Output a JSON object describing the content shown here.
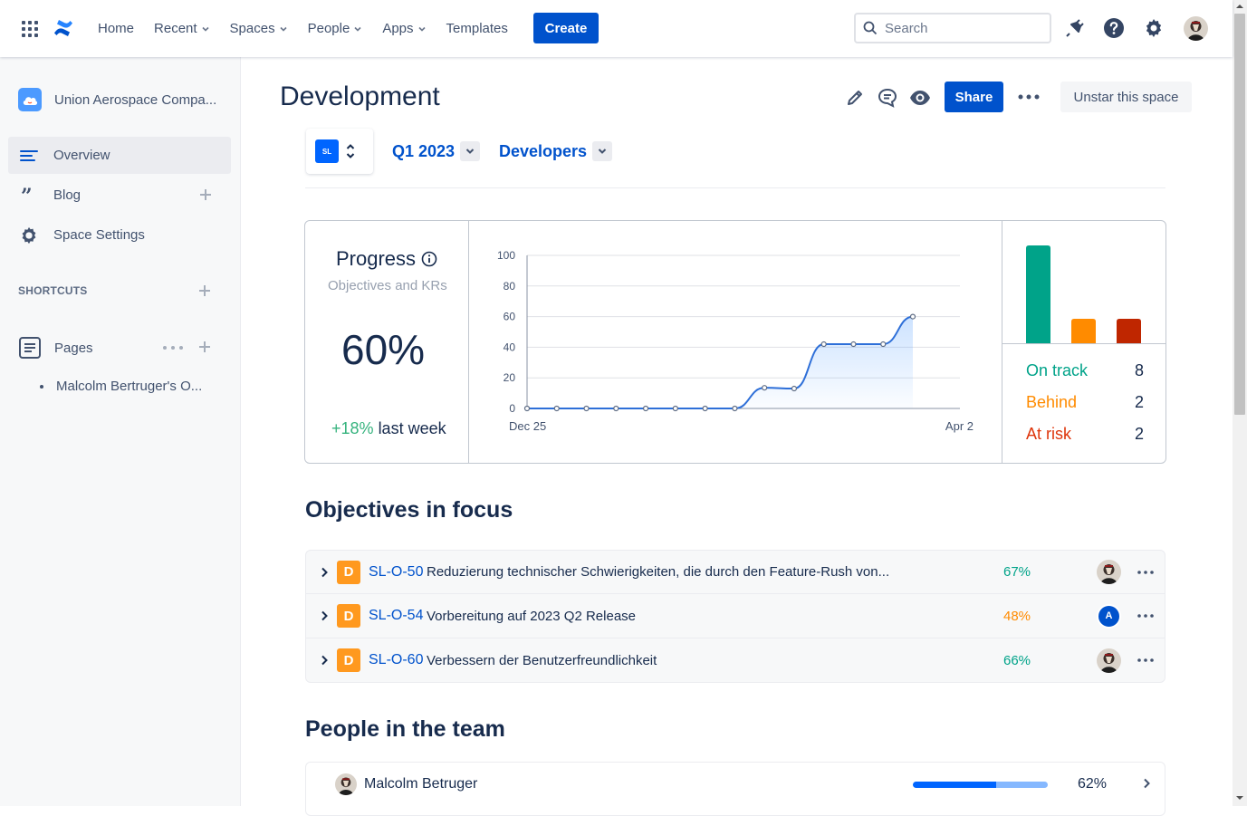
{
  "topbar": {
    "nav": [
      {
        "label": "Home",
        "has_dropdown": false
      },
      {
        "label": "Recent",
        "has_dropdown": true
      },
      {
        "label": "Spaces",
        "has_dropdown": true
      },
      {
        "label": "People",
        "has_dropdown": true
      },
      {
        "label": "Apps",
        "has_dropdown": true
      },
      {
        "label": "Templates",
        "has_dropdown": false
      }
    ],
    "create_label": "Create",
    "search_placeholder": "Search",
    "icons": [
      "app-switcher-icon",
      "confluence-logo-icon",
      "notifications-icon",
      "help-icon",
      "settings-icon",
      "user-avatar"
    ]
  },
  "sidebar": {
    "space_name": "Union Aerospace Compa...",
    "items": [
      {
        "label": "Overview",
        "icon": "overview-icon",
        "active": true
      },
      {
        "label": "Blog",
        "icon": "quote-icon",
        "active": false
      },
      {
        "label": "Space Settings",
        "icon": "gear-icon",
        "active": false
      }
    ],
    "shortcuts_label": "SHORTCUTS",
    "pages_label": "Pages",
    "page_children": [
      "Malcolm Bertruger's O..."
    ]
  },
  "main": {
    "title": "Development",
    "share_label": "Share",
    "unstar_label": "Unstar this space",
    "badge_text": "SL",
    "filter_period": "Q1 2023",
    "filter_team": "Developers",
    "progress": {
      "title": "Progress",
      "subtitle": "Objectives and KRs",
      "percent": "60%",
      "change": "+18%",
      "change_suffix": "last week"
    },
    "status": [
      {
        "label": "On track",
        "count": "8",
        "color": "#00a389"
      },
      {
        "label": "Behind",
        "count": "2",
        "color": "#ff8b00"
      },
      {
        "label": "At risk",
        "count": "2",
        "color": "#de350b"
      }
    ],
    "objectives_title": "Objectives in focus",
    "objectives": [
      {
        "badge": "D",
        "key": "SL-O-50",
        "title": "Reduzierung technischer Schwierigkeiten, die durch den Feature-Rush von...",
        "percent": "67%",
        "percent_color": "#00a389",
        "owner": "avatar"
      },
      {
        "badge": "D",
        "key": "SL-O-54",
        "title": "Vorbereitung auf 2023 Q2 Release",
        "percent": "48%",
        "percent_color": "#ff8b00",
        "owner": "A"
      },
      {
        "badge": "D",
        "key": "SL-O-60",
        "title": "Verbessern der Benutzerfreundlichkeit",
        "percent": "66%",
        "percent_color": "#00a389",
        "owner": "avatar"
      }
    ],
    "team_title": "People in the team",
    "team": [
      {
        "name": "Malcolm Betruger",
        "percent": "62%",
        "progress": 0.62
      }
    ]
  },
  "chart_data": [
    {
      "type": "line",
      "x_labels": [
        "Dec 25",
        "Apr 2"
      ],
      "values": [
        0,
        0,
        0,
        0,
        0,
        0,
        0,
        0,
        13.5,
        13,
        42,
        42,
        42,
        60
      ],
      "yticks": [
        0,
        20,
        40,
        60,
        80,
        100
      ],
      "ylim": [
        0,
        100
      ],
      "grid": true
    },
    {
      "type": "bar",
      "categories": [
        "On track",
        "Behind",
        "At risk"
      ],
      "values": [
        8,
        2,
        2
      ],
      "colors": [
        "#00a389",
        "#ff8b00",
        "#bf2600"
      ]
    }
  ]
}
